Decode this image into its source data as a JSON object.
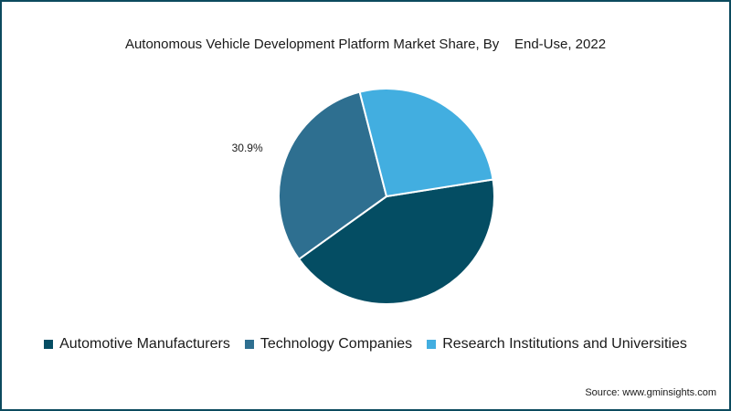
{
  "chart_data": {
    "type": "pie",
    "title": "Autonomous Vehicle Development Platform Market Share, By    End-Use, 2022",
    "categories": [
      "Automotive Manufacturers",
      "Technology Companies",
      "Research Institutions and Universities"
    ],
    "values": [
      42.6,
      30.9,
      26.5
    ],
    "colors": [
      "#044d63",
      "#2e6f90",
      "#42aee0"
    ],
    "data_labels": [
      "",
      "30.9%",
      ""
    ],
    "legend_position": "bottom"
  },
  "source": "Source: www.gminsights.com"
}
